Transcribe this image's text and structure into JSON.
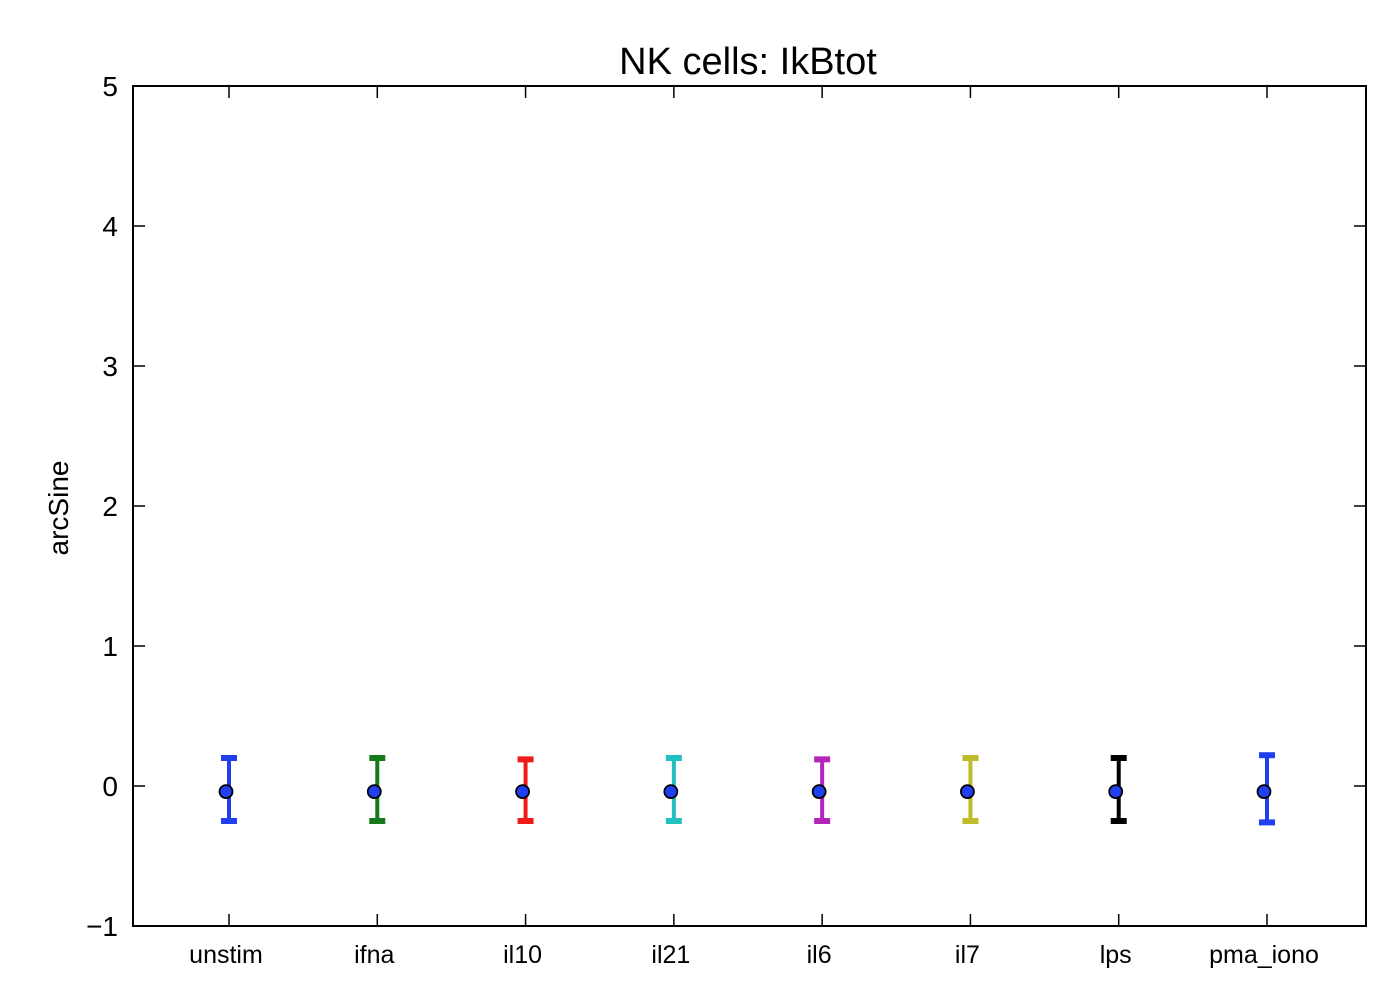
{
  "chart_data": {
    "type": "scatter",
    "title": "NK cells: IkBtot",
    "xlabel": "",
    "ylabel": "arcSine",
    "ylim": [
      -1,
      5
    ],
    "yticks": [
      -1,
      0,
      1,
      2,
      3,
      4,
      5
    ],
    "ytick_labels": [
      "−1",
      "0",
      "1",
      "2",
      "3",
      "4",
      "5"
    ],
    "grid": false,
    "categories": [
      "unstim",
      "ifna",
      "il10",
      "il21",
      "il6",
      "il7",
      "lps",
      "pma_iono"
    ],
    "values": [
      -0.04,
      -0.04,
      -0.04,
      -0.04,
      -0.04,
      -0.04,
      -0.04,
      -0.04
    ],
    "error_low": [
      -0.25,
      -0.25,
      -0.25,
      -0.25,
      -0.25,
      -0.25,
      -0.25,
      -0.26
    ],
    "error_high": [
      0.2,
      0.2,
      0.19,
      0.2,
      0.19,
      0.2,
      0.2,
      0.22
    ],
    "errorbar_colors": [
      "#1f3ff0",
      "#157a1a",
      "#ef1b1b",
      "#22c0c0",
      "#b424b8",
      "#bdbd2a",
      "#000000",
      "#1f3ff0"
    ],
    "marker_color": "#1f3ff0",
    "marker_edge": "#000000"
  }
}
